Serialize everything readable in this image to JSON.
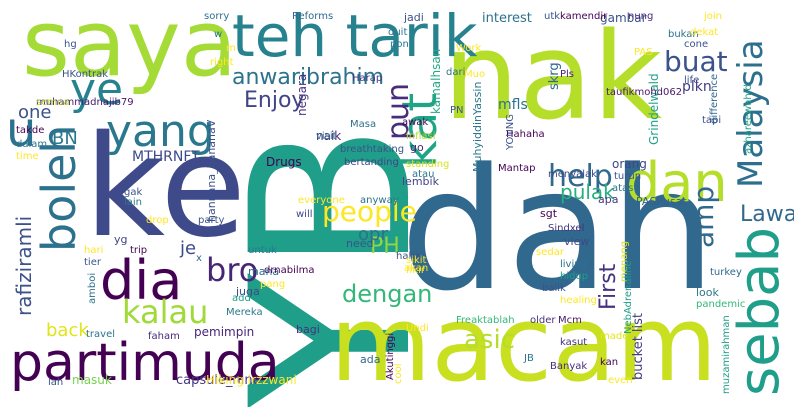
{
  "words": [
    {
      "text": "nak",
      "color": "#b5de2b"
    },
    {
      "text": "YB",
      "color": "#1f9e89"
    },
    {
      "text": "dah",
      "color": "#31688e"
    },
    {
      "text": "macam",
      "color": "#c8e020"
    },
    {
      "text": "ke",
      "color": "#3e4a89"
    },
    {
      "text": "saya",
      "color": "#a5db36"
    },
    {
      "text": "teh tarik",
      "color": "#26828e"
    },
    {
      "text": "partimuda",
      "color": "#440154"
    },
    {
      "text": "dan",
      "color": "#b5de2b"
    },
    {
      "text": "sebab",
      "color": "#1f9e89"
    },
    {
      "text": "boleh",
      "color": "#2c728e"
    },
    {
      "text": "dia",
      "color": "#440154"
    },
    {
      "text": "yang",
      "color": "#2a788e"
    },
    {
      "text": "ye",
      "color": "#26828e"
    },
    {
      "text": "Malaysia",
      "color": "#2d708e"
    },
    {
      "text": "bro",
      "color": "#482677"
    },
    {
      "text": "kalau",
      "color": "#a0da39"
    },
    {
      "text": "people",
      "color": "#fde725"
    },
    {
      "text": "kat",
      "color": "#20a486"
    },
    {
      "text": "help",
      "color": "#31688e"
    },
    {
      "text": "pun",
      "color": "#472d7b"
    },
    {
      "text": "dengan",
      "color": "#35b779"
    },
    {
      "text": "amp",
      "color": "#31688e"
    },
    {
      "text": "asic",
      "color": "#b5de2b"
    },
    {
      "text": "u",
      "color": "#2c728e"
    },
    {
      "text": "buat",
      "color": "#3b528b"
    },
    {
      "text": "Lawa",
      "color": "#31688e"
    },
    {
      "text": "PH",
      "color": "#8fd744"
    },
    {
      "text": "First",
      "color": "#46337e"
    },
    {
      "text": "anwaribrahim",
      "color": "#2c728e"
    },
    {
      "text": "Enjoy",
      "color": "#414487"
    },
    {
      "text": "rafiziramli",
      "color": "#3b528b"
    },
    {
      "text": "opr",
      "color": "#2c728e"
    },
    {
      "text": "pulak",
      "color": "#29af7f"
    },
    {
      "text": "back",
      "color": "#e2e418"
    },
    {
      "text": "je",
      "color": "#3e4a89"
    },
    {
      "text": "one",
      "color": "#3b528b"
    },
    {
      "text": "BN",
      "color": "#2a788e"
    },
    {
      "text": "capsule_nine",
      "color": "#443983"
    },
    {
      "text": "plkn",
      "color": "#443a83"
    },
    {
      "text": "MTHRNFT",
      "color": "#3e4a89"
    },
    {
      "text": "Drugs",
      "color": "#440154"
    },
    {
      "text": "bucket list",
      "color": "#433e85"
    },
    {
      "text": "kamalhsan",
      "color": "#22a884"
    },
    {
      "text": "mfls",
      "color": "#2c728e"
    },
    {
      "text": "Grindelwald",
      "color": "#1fa088"
    },
    {
      "text": "hannana_bananaV",
      "color": "#3b528b"
    },
    {
      "text": "Hiking irzzwani",
      "color": "#fde725"
    },
    {
      "text": "MuhyiddinYassin",
      "color": "#2a788e"
    },
    {
      "text": "Freaktablah",
      "color": "#35b779"
    },
    {
      "text": "negara",
      "color": "#46327e"
    },
    {
      "text": "interest",
      "color": "#2c728e"
    },
    {
      "text": "skrg",
      "color": "#31688e"
    },
    {
      "text": "jadi",
      "color": "#3b528b"
    },
    {
      "text": "gambar",
      "color": "#3b528b"
    },
    {
      "text": "Harap",
      "color": "#443983"
    },
    {
      "text": "naik",
      "color": "#472c7a"
    },
    {
      "text": "go",
      "color": "#482878"
    },
    {
      "text": "orang",
      "color": "#404688"
    },
    {
      "text": "menyalak",
      "color": "#3e4989"
    },
    {
      "text": "sgt",
      "color": "#440154"
    },
    {
      "text": "lembik",
      "color": "#414487"
    },
    {
      "text": "PASPusat",
      "color": "#355f8d"
    },
    {
      "text": "apa",
      "color": "#453781"
    },
    {
      "text": "need",
      "color": "#3b528b"
    },
    {
      "text": "look",
      "color": "#2a788e"
    },
    {
      "text": "view",
      "color": "#3e4989"
    },
    {
      "text": "pemimpin",
      "color": "#482576"
    },
    {
      "text": "bagi",
      "color": "#463480"
    },
    {
      "text": "masuk",
      "color": "#7ad151"
    },
    {
      "text": "juga",
      "color": "#3e4a89"
    },
    {
      "text": "mana",
      "color": "#2d708e"
    },
    {
      "text": "ada",
      "color": "#31688e"
    },
    {
      "text": "lah",
      "color": "#3b528b"
    },
    {
      "text": "yg",
      "color": "#414487"
    },
    {
      "text": "drnabilma",
      "color": "#440154"
    },
    {
      "text": "muhammadnajib79",
      "color": "#48186a"
    },
    {
      "text": "HKontrak",
      "color": "#3b528b"
    },
    {
      "text": "Reforms",
      "color": "#31688e"
    },
    {
      "text": "taufikmohd062",
      "color": "#48186a"
    },
    {
      "text": "visit",
      "color": "#2a788e"
    },
    {
      "text": "breathtaking",
      "color": "#3b528b"
    },
    {
      "text": "bertanding",
      "color": "#414487"
    },
    {
      "text": "Masa",
      "color": "#2c728e"
    },
    {
      "text": "standing",
      "color": "#d8e219"
    },
    {
      "text": "kasut",
      "color": "#46327e"
    },
    {
      "text": "Banyak",
      "color": "#472d7b"
    },
    {
      "text": "Mantap",
      "color": "#440154"
    },
    {
      "text": "PN",
      "color": "#3b528b"
    },
    {
      "text": "Pls",
      "color": "#482475"
    },
    {
      "text": "Hahaha",
      "color": "#440154"
    },
    {
      "text": "living",
      "color": "#2c728e"
    },
    {
      "text": "healing",
      "color": "#fde725"
    },
    {
      "text": "menang",
      "color": "#dde318"
    },
    {
      "text": "Sindxel",
      "color": "#46337e"
    },
    {
      "text": "older",
      "color": "#46327e"
    },
    {
      "text": "Mereka",
      "color": "#2a788e"
    },
    {
      "text": "travel",
      "color": "#2c728e"
    },
    {
      "text": "trip",
      "color": "#440154"
    },
    {
      "text": "will",
      "color": "#3e4a89"
    },
    {
      "text": "party",
      "color": "#3b528b"
    },
    {
      "text": "everyone",
      "color": "#fde725"
    },
    {
      "text": "turkey",
      "color": "#31688e"
    },
    {
      "text": "pandemic",
      "color": "#35b779"
    },
    {
      "text": "made",
      "color": "#e5e419"
    },
    {
      "text": "kan",
      "color": "#440154"
    },
    {
      "text": "even",
      "color": "#fde725"
    },
    {
      "text": "muzamirahman",
      "color": "#1f9e89"
    },
    {
      "text": "NebAdrenaline",
      "color": "#1f9e89"
    },
    {
      "text": "hidup",
      "color": "#1f9e89"
    },
    {
      "text": "balik",
      "color": "#3b528b"
    },
    {
      "text": "sedar",
      "color": "#fde725"
    },
    {
      "text": "Mcm",
      "color": "#48186a"
    },
    {
      "text": "JB",
      "color": "#2c728e"
    },
    {
      "text": "Akutinggi",
      "color": "#440154"
    },
    {
      "text": "cool",
      "color": "#fde725"
    },
    {
      "text": "fikir",
      "color": "#fde725"
    },
    {
      "text": "haha",
      "color": "#3b528b"
    },
    {
      "text": "untuk",
      "color": "#2a788e"
    },
    {
      "text": "add",
      "color": "#1f9e89"
    },
    {
      "text": "pang",
      "color": "#fde725"
    },
    {
      "text": "faham",
      "color": "#472d7b"
    },
    {
      "text": "drop",
      "color": "#fde725"
    },
    {
      "text": "lain",
      "color": "#2a788e"
    },
    {
      "text": "tier",
      "color": "#3b528b"
    },
    {
      "text": "hari",
      "color": "#fde725"
    },
    {
      "text": "amboi",
      "color": "#2c728e"
    },
    {
      "text": "gak",
      "color": "#3b528b"
    },
    {
      "text": "time",
      "color": "#fde725"
    },
    {
      "text": "dalam",
      "color": "#2a788e"
    },
    {
      "text": "takde",
      "color": "#440154"
    },
    {
      "text": "semua",
      "color": "#b5de2b"
    },
    {
      "text": "hg",
      "color": "#3b528b"
    },
    {
      "text": "sorry",
      "color": "#2c728e"
    },
    {
      "text": "w",
      "color": "#2a788e"
    },
    {
      "text": "utk",
      "color": "#3b528b"
    },
    {
      "text": "kamendir",
      "color": "#440154"
    },
    {
      "text": "nung",
      "color": "#482878"
    },
    {
      "text": "duit",
      "color": "#2c728e"
    },
    {
      "text": "pon",
      "color": "#2a788e"
    },
    {
      "text": "bukan",
      "color": "#2c728e"
    },
    {
      "text": "cone",
      "color": "#3b528b"
    },
    {
      "text": "life",
      "color": "#3b528b"
    },
    {
      "text": "difference",
      "color": "#31688e"
    },
    {
      "text": "tapi",
      "color": "#3b528b"
    },
    {
      "text": "azhareewahid",
      "color": "#1f9e89"
    },
    {
      "text": "inflasi",
      "color": "#b5de2b"
    },
    {
      "text": "awak",
      "color": "#440154"
    },
    {
      "text": "atau",
      "color": "#2a788e"
    },
    {
      "text": "atas",
      "color": "#2c728e"
    },
    {
      "text": "turun",
      "color": "#3b528b"
    },
    {
      "text": "anyway",
      "color": "#2c728e"
    },
    {
      "text": "x",
      "color": "#31688e"
    },
    {
      "text": "sikit",
      "color": "#fde725"
    },
    {
      "text": "akan",
      "color": "#fde725"
    },
    {
      "text": "YOUNG",
      "color": "#3b528b"
    },
    {
      "text": "right",
      "color": "#fde725"
    },
    {
      "text": "Muo",
      "color": "#fde725"
    },
    {
      "text": "dari",
      "color": "#2c728e"
    },
    {
      "text": "PAS",
      "color": "#fde725"
    },
    {
      "text": "Work",
      "color": "#fde725"
    },
    {
      "text": "dekat",
      "color": "#fde725"
    },
    {
      "text": "join",
      "color": "#fde725"
    },
    {
      "text": "Undi",
      "color": "#fde725"
    },
    {
      "text": "m",
      "color": "#fde725"
    }
  ]
}
